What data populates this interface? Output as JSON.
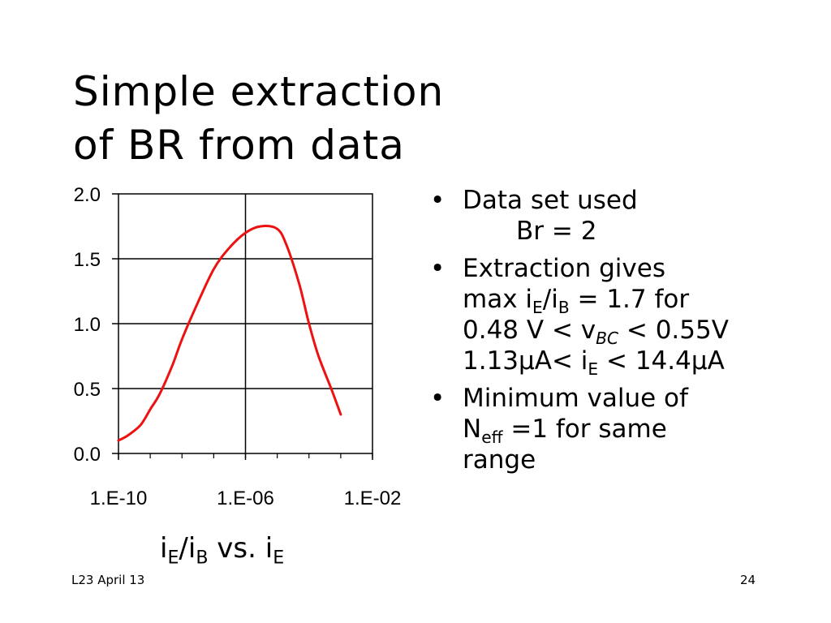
{
  "slide": {
    "title_line1": "Simple extraction",
    "title_line2": "of BR from data",
    "caption": {
      "part1": "i",
      "sub1": "E",
      "part2": "/i",
      "sub2": "B",
      "part3": " vs. i",
      "sub3": "E"
    },
    "bullets": {
      "b1_line1": "Data set used",
      "b1_line2": "Br = 2",
      "b2_line1": "Extraction gives",
      "b2_line2_a": "max i",
      "b2_line2_sub1": "E",
      "b2_line2_b": "/i",
      "b2_line2_sub2": "B",
      "b2_line2_c": " = 1.7 for",
      "b2_line3_a": "0.48 V < v",
      "b2_line3_sub": "BC",
      "b2_line3_b": " < 0.55V",
      "b2_line4_a": "1.13μA< i",
      "b2_line4_sub": "E",
      "b2_line4_b": " < 14.4μA",
      "b3_line1": "Minimum value of",
      "b3_line2_a": "N",
      "b3_line2_sub": "eff",
      "b3_line2_b": " =1 for same",
      "b3_line3": "range"
    },
    "footer_left": "L23 April 13",
    "footer_right": "24"
  },
  "chart_data": {
    "type": "line",
    "x_scale": "log",
    "xlim": [
      1e-10,
      0.01
    ],
    "ylim": [
      0,
      2.0
    ],
    "x_ticks": [
      "1.E-10",
      "1.E-06",
      "1.E-02"
    ],
    "y_ticks": [
      "2.0",
      "1.5",
      "1.0",
      "0.5",
      "0.0"
    ],
    "grid": true,
    "series": [
      {
        "color": "#ee1111",
        "x": [
          1e-10,
          2e-10,
          5e-10,
          1e-09,
          2e-09,
          5e-09,
          1e-08,
          3e-08,
          1e-07,
          3e-07,
          1e-06,
          3e-06,
          1e-05,
          2e-05,
          5e-05,
          0.0001,
          0.0002,
          0.0005,
          0.001
        ],
        "y": [
          0.1,
          0.14,
          0.22,
          0.34,
          0.46,
          0.68,
          0.88,
          1.15,
          1.42,
          1.58,
          1.7,
          1.75,
          1.73,
          1.6,
          1.3,
          1.0,
          0.75,
          0.5,
          0.3
        ]
      }
    ],
    "xlabel": "",
    "ylabel": ""
  }
}
